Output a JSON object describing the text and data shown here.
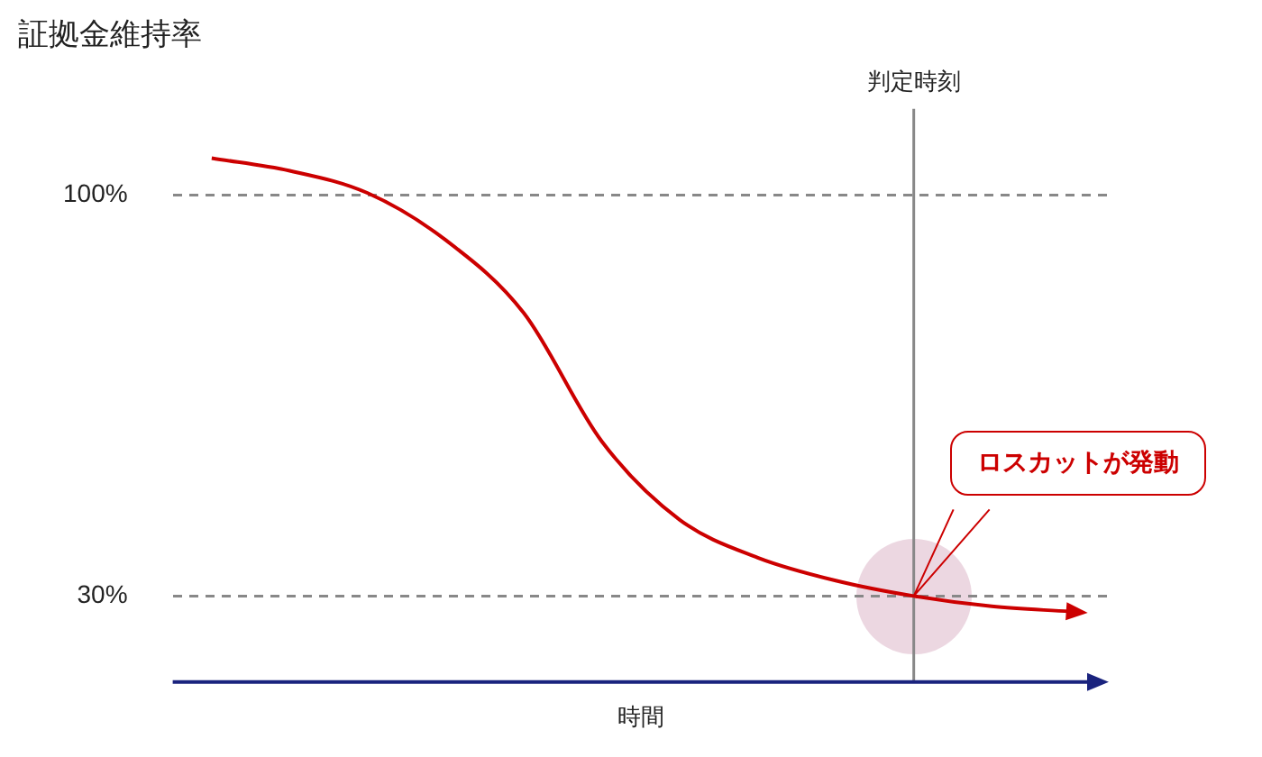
{
  "chart_data": {
    "type": "line",
    "title": "証拠金維持率",
    "xlabel": "時間",
    "categories": [
      null,
      null,
      null,
      null,
      null,
      null,
      null,
      null,
      null,
      null,
      null,
      null
    ],
    "series": [
      {
        "color": "#cc0000",
        "values": [
          106.4,
          104.2,
          100.3,
          92.1,
          79.4,
          57,
          43.3,
          36.7,
          32.7,
          30,
          28.2,
          27.3
        ]
      }
    ],
    "ylim": [
      15,
      115
    ],
    "yticks": [
      {
        "value": 30,
        "label": "30%"
      },
      {
        "value": 100,
        "label": "100%"
      }
    ],
    "tick_labels": "y",
    "grid": "y",
    "marker": "none",
    "line_style": "solid",
    "legend": false,
    "annotations": [
      "判定時刻",
      "ロスカットが発動"
    ]
  }
}
